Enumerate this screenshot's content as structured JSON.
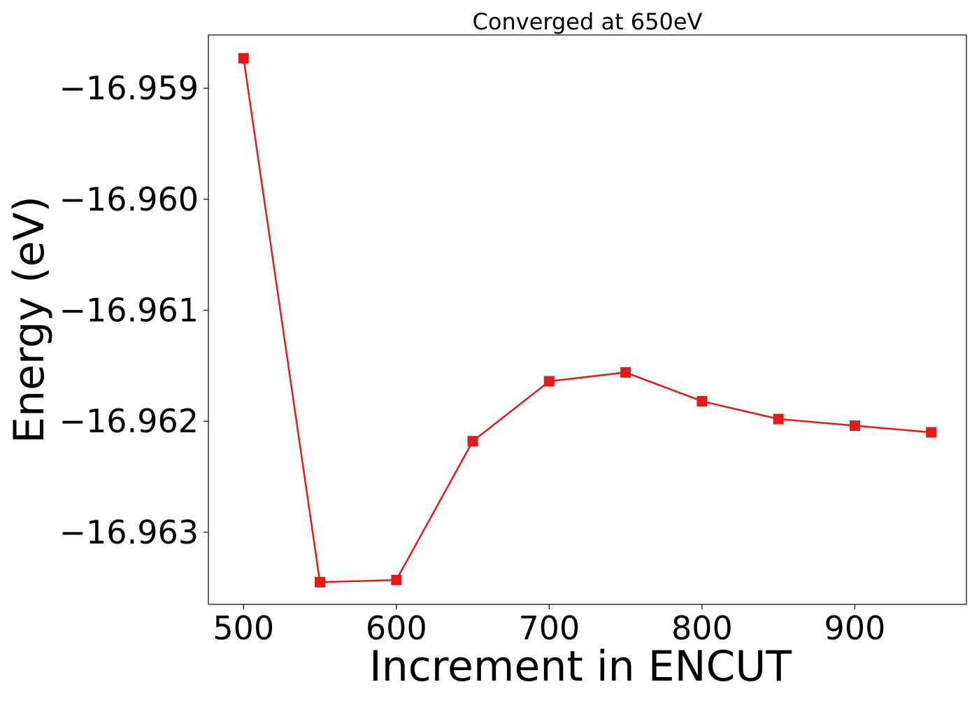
{
  "chart_data": {
    "type": "line",
    "title": "Converged at 650eV",
    "xlabel": "Increment in ENCUT",
    "ylabel": "Energy (eV)",
    "x": [
      500,
      550,
      600,
      650,
      700,
      750,
      800,
      850,
      900,
      950
    ],
    "series": [
      {
        "values": [
          -16.95873,
          -16.96345,
          -16.96343,
          -16.96218,
          -16.96164,
          -16.96156,
          -16.96182,
          -16.96198,
          -16.96204,
          -16.9621
        ],
        "color": "#e31a1c",
        "marker": "square"
      }
    ],
    "xlim": [
      477,
      973
    ],
    "ylim": [
      -16.96365,
      -16.95852
    ],
    "xticks": [
      500,
      600,
      700,
      800,
      900
    ],
    "xtick_labels": [
      "500",
      "600",
      "700",
      "800",
      "900"
    ],
    "yticks": [
      -16.959,
      -16.96,
      -16.961,
      -16.962,
      -16.963
    ],
    "ytick_labels": [
      "−16.959",
      "−16.960",
      "−16.961",
      "−16.962",
      "−16.963"
    ],
    "grid": false,
    "legend": "none"
  }
}
